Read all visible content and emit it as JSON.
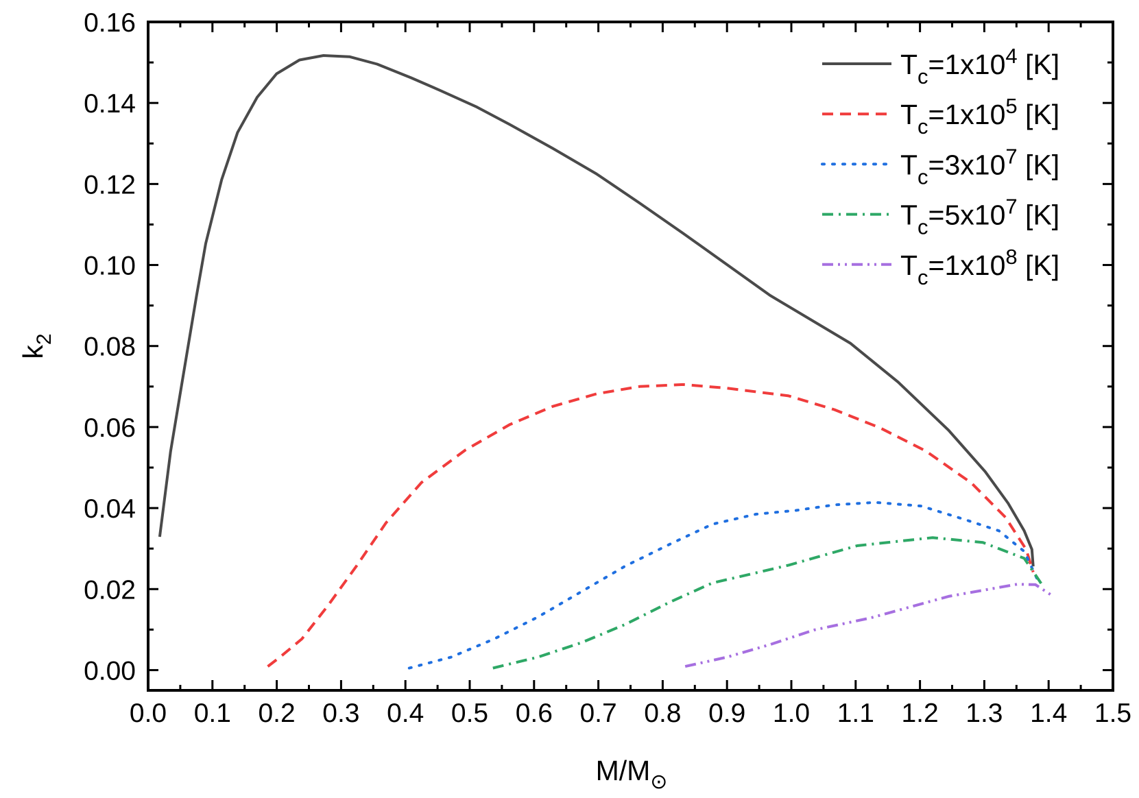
{
  "chart_data": {
    "type": "line",
    "title": "",
    "xlabel": {
      "main": "M/M",
      "sub": "⊙"
    },
    "ylabel": {
      "main": "k",
      "sub": "2"
    },
    "xlim": [
      0.0,
      1.5
    ],
    "ylim": [
      -0.005,
      0.16
    ],
    "xticks": [
      "0.0",
      "0.1",
      "0.2",
      "0.3",
      "0.4",
      "0.5",
      "0.6",
      "0.7",
      "0.8",
      "0.9",
      "1.0",
      "1.1",
      "1.2",
      "1.3",
      "1.4",
      "1.5"
    ],
    "yticks": [
      "0.00",
      "0.02",
      "0.04",
      "0.06",
      "0.08",
      "0.10",
      "0.12",
      "0.14",
      "0.16"
    ],
    "grid": false,
    "legend_position": "top-right",
    "series": [
      {
        "name": {
          "base": "T",
          "sub": "c",
          "mid": "=1x10",
          "sup": "4",
          "unit": " [K]"
        },
        "color": "#4a4a4a",
        "style": "solid",
        "x": [
          0.018,
          0.035,
          0.052,
          0.0754,
          0.0896,
          0.1144,
          0.139,
          0.1695,
          0.1997,
          0.2353,
          0.2726,
          0.3134,
          0.356,
          0.409,
          0.454,
          0.511,
          0.562,
          0.629,
          0.697,
          0.764,
          0.832,
          0.9,
          0.967,
          1.0917,
          1.166,
          1.2445,
          1.3014,
          1.337,
          1.362,
          1.374,
          1.376
        ],
        "y": [
          0.0329,
          0.054,
          0.0703,
          0.0925,
          0.1053,
          0.1211,
          0.1327,
          0.1414,
          0.1472,
          0.1506,
          0.1517,
          0.1514,
          0.1496,
          0.1462,
          0.1431,
          0.139,
          0.1347,
          0.1288,
          0.1225,
          0.1153,
          0.1078,
          0.1001,
          0.0925,
          0.0807,
          0.0711,
          0.0592,
          0.049,
          0.0412,
          0.0344,
          0.0298,
          0.0256
        ]
      },
      {
        "name": {
          "base": "T",
          "sub": "c",
          "mid": "=1x10",
          "sup": "5",
          "unit": " [K]"
        },
        "color": "#f03c3c",
        "style": "dash",
        "x": [
          0.186,
          0.205,
          0.239,
          0.279,
          0.324,
          0.37,
          0.425,
          0.493,
          0.562,
          0.629,
          0.697,
          0.764,
          0.832,
          0.9,
          0.9957,
          1.0668,
          1.138,
          1.209,
          1.28,
          1.333,
          1.365,
          1.376
        ],
        "y": [
          0.0009,
          0.0032,
          0.0077,
          0.0158,
          0.0257,
          0.0364,
          0.0463,
          0.0543,
          0.0606,
          0.0651,
          0.0682,
          0.07,
          0.0705,
          0.0696,
          0.0677,
          0.0643,
          0.0598,
          0.0541,
          0.0462,
          0.0377,
          0.0298,
          0.0242
        ]
      },
      {
        "name": {
          "base": "T",
          "sub": "c",
          "mid": "=3x10",
          "sup": "7",
          "unit": " [K]"
        },
        "color": "#1f6fe0",
        "style": "dot",
        "x": [
          0.406,
          0.471,
          0.538,
          0.606,
          0.674,
          0.742,
          0.81,
          0.877,
          0.945,
          1.0064,
          1.0668,
          1.1308,
          1.2018,
          1.269,
          1.3227,
          1.362,
          1.383
        ],
        "y": [
          0.0005,
          0.0032,
          0.0077,
          0.0131,
          0.0194,
          0.0257,
          0.031,
          0.036,
          0.0385,
          0.0394,
          0.0408,
          0.0414,
          0.0405,
          0.0372,
          0.0344,
          0.0293,
          0.0222
        ]
      },
      {
        "name": {
          "base": "T",
          "sub": "c",
          "mid": "=5x10",
          "sup": "7",
          "unit": " [K]"
        },
        "color": "#2ea866",
        "style": "dashdot",
        "x": [
          0.536,
          0.606,
          0.674,
          0.742,
          0.81,
          0.877,
          0.945,
          0.9957,
          1.1023,
          1.2196,
          1.2978,
          1.362,
          1.3884
        ],
        "y": [
          0.0005,
          0.0032,
          0.0068,
          0.0113,
          0.0167,
          0.0215,
          0.024,
          0.0259,
          0.0307,
          0.0327,
          0.0315,
          0.0276,
          0.0214
        ]
      },
      {
        "name": {
          "base": "T",
          "sub": "c",
          "mid": "=1x10",
          "sup": "8",
          "unit": " [K]"
        },
        "color": "#a66fe0",
        "style": "dashdotdot",
        "x": [
          0.835,
          0.9,
          0.967,
          1.035,
          1.1237,
          1.2445,
          1.351,
          1.3795,
          1.4044
        ],
        "y": [
          0.0009,
          0.0032,
          0.0063,
          0.0099,
          0.0129,
          0.0182,
          0.0212,
          0.0211,
          0.0185
        ]
      }
    ]
  }
}
